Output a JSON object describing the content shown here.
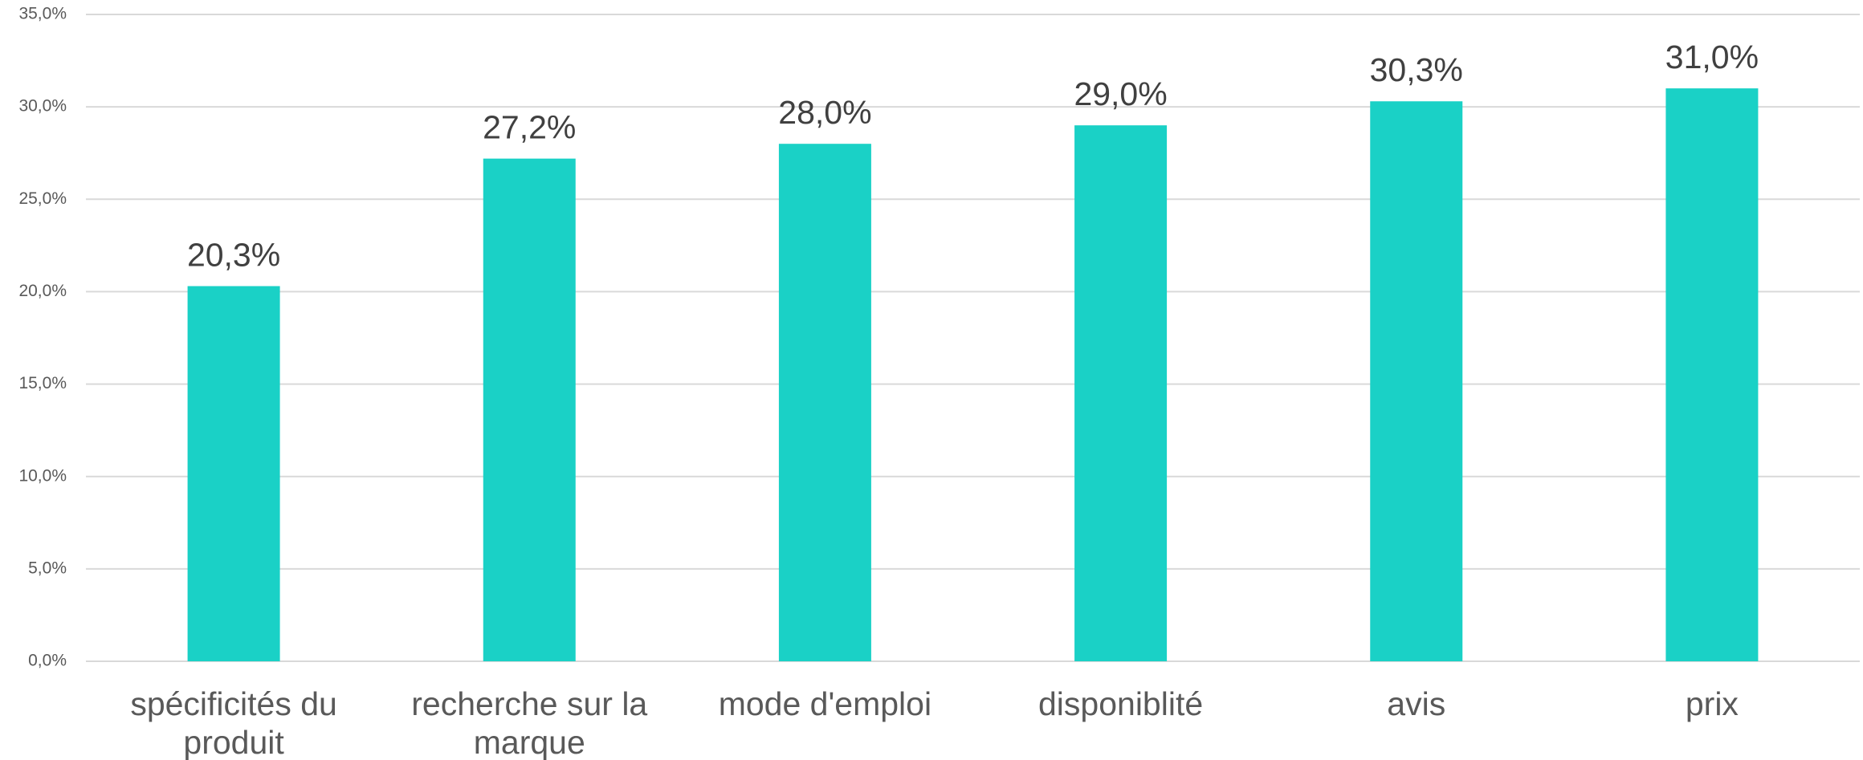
{
  "chart_data": {
    "type": "bar",
    "categories": [
      "spécificités du produit",
      "recherche sur la marque",
      "mode d'emploi",
      "disponiblité",
      "avis",
      "prix"
    ],
    "values": [
      20.3,
      27.2,
      28.0,
      29.0,
      30.3,
      31.0
    ],
    "value_labels": [
      "20,3%",
      "27,2%",
      "28,0%",
      "29,0%",
      "30,3%",
      "31,0%"
    ],
    "color": "#1ad1c6",
    "ylim": [
      0,
      35
    ],
    "yticks": [
      {
        "value": 0,
        "label": "0,0%"
      },
      {
        "value": 5,
        "label": "5,0%"
      },
      {
        "value": 10,
        "label": "10,0%"
      },
      {
        "value": 15,
        "label": "15,0%"
      },
      {
        "value": 20,
        "label": "20,0%"
      },
      {
        "value": 25,
        "label": "25,0%"
      },
      {
        "value": 30,
        "label": "30,0%"
      },
      {
        "value": 35,
        "label": "35,0%"
      }
    ],
    "grid": true
  }
}
